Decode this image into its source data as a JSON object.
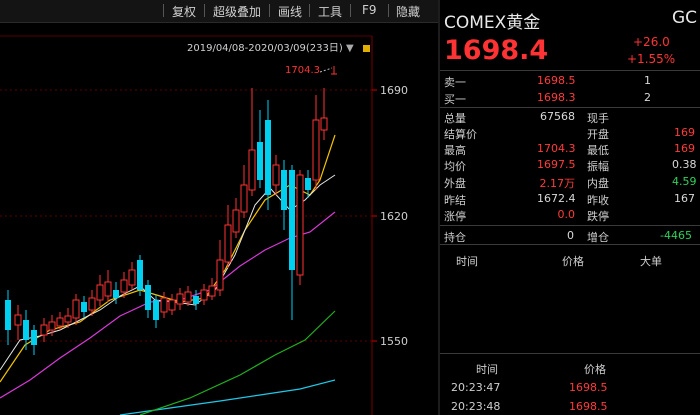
{
  "toolbar": {
    "restore_rights": "复权",
    "overlay": "超级叠加",
    "draw_line": "画线",
    "tools": "工具",
    "f9": "F9",
    "hide": "隐藏"
  },
  "chart": {
    "range_start": "2019/04/08",
    "range_end": "2020/03/09",
    "count": "(233日)",
    "high_marker": "1704.3",
    "axis_ticks": [
      "1690",
      "1620",
      "1550"
    ]
  },
  "colors": {
    "up": "#ff3333",
    "down": "#00d0f0",
    "ma5": "#e6e6e6",
    "ma10": "#f2c200",
    "ma20": "#d83ad8",
    "ma60": "#20b020",
    "ma120": "#20c8e8"
  },
  "quote": {
    "name": "COMEX黄金",
    "code": "GC",
    "price": "1698.4",
    "change": "+26.0",
    "change_pct": "+1.55%"
  },
  "orderbook": [
    {
      "label": "卖一",
      "price": "1698.5",
      "vol": "1"
    },
    {
      "label": "买一",
      "price": "1698.3",
      "vol": "2"
    }
  ],
  "stats_left": [
    {
      "label": "总量",
      "value": "67568",
      "color": "white"
    },
    {
      "label": "结算价",
      "value": "",
      "color": "white"
    },
    {
      "label": "最高",
      "value": "1704.3",
      "color": "red"
    },
    {
      "label": "均价",
      "value": "1697.5",
      "color": "red"
    },
    {
      "label": "外盘",
      "value": "2.17万",
      "color": "red"
    },
    {
      "label": "昨结",
      "value": "1672.4",
      "color": "white"
    },
    {
      "label": "涨停",
      "value": "0.0",
      "color": "red"
    }
  ],
  "stats_right": [
    {
      "label": "现手",
      "value": "",
      "color": "white"
    },
    {
      "label": "开盘",
      "value": "169",
      "color": "red"
    },
    {
      "label": "最低",
      "value": "169",
      "color": "red"
    },
    {
      "label": "振幅",
      "value": "0.38",
      "color": "white"
    },
    {
      "label": "内盘",
      "value": "4.59",
      "color": "green"
    },
    {
      "label": "昨收",
      "value": "167",
      "color": "white"
    },
    {
      "label": "跌停",
      "value": "",
      "color": "white"
    }
  ],
  "position": {
    "label": "持仓",
    "value": "0",
    "label2": "增仓",
    "value2": "-4465"
  },
  "big_orders": {
    "col_time": "时间",
    "col_price": "价格",
    "col_type": "大单"
  },
  "ticks": {
    "col_time": "时间",
    "col_price": "价格",
    "rows": [
      {
        "time": "20:23:47",
        "price": "1698.5"
      },
      {
        "time": "20:23:48",
        "price": "1698.5"
      }
    ]
  }
}
